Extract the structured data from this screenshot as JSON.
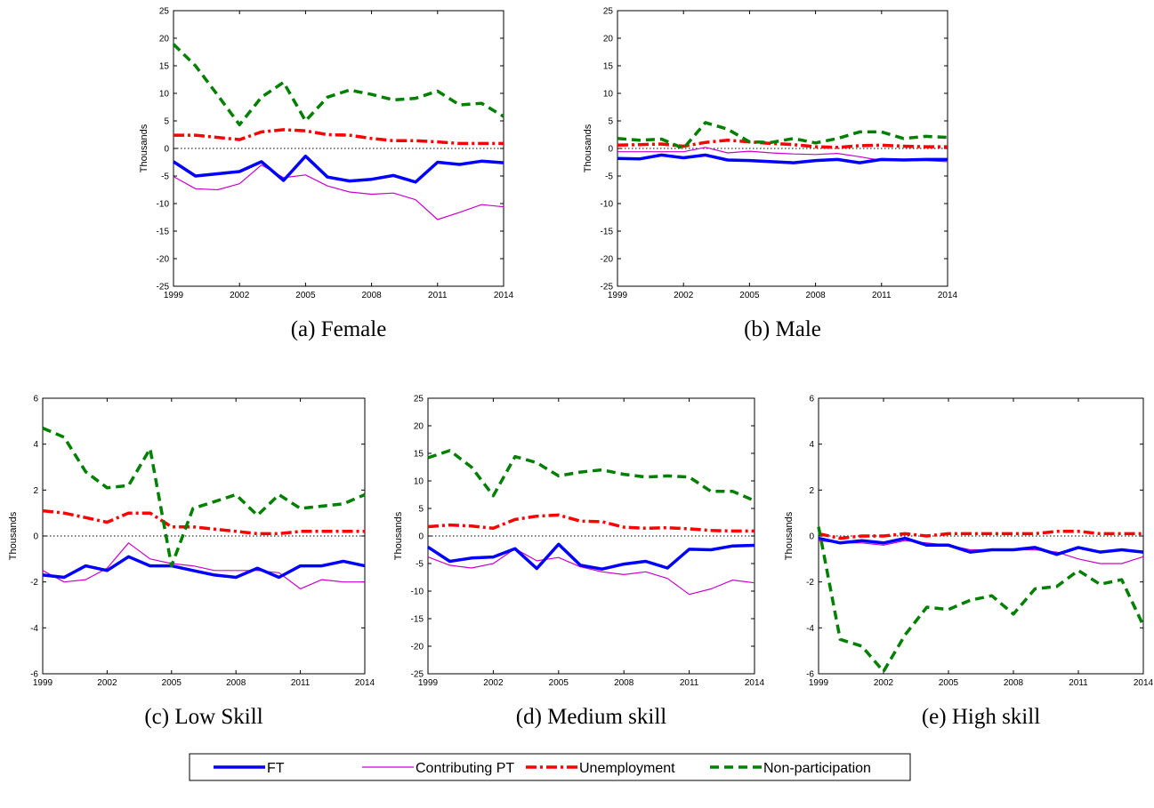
{
  "figure": {
    "legend": [
      {
        "name": "FT",
        "color": "#0000ff"
      },
      {
        "name": "Contributing PT",
        "color": "#cc00cc"
      },
      {
        "name": "Unemployment",
        "color": "#ff0000"
      },
      {
        "name": "Non-participation",
        "color": "#008000"
      }
    ]
  },
  "chart_data": [
    {
      "type": "line",
      "caption": "(a) Female",
      "ylabel": "Thousands",
      "ylim": [
        -25,
        25
      ],
      "yticks": [
        -25,
        -20,
        -15,
        -10,
        -5,
        0,
        5,
        10,
        15,
        20,
        25
      ],
      "xlim": [
        1999,
        2014
      ],
      "xticks": [
        1999,
        2002,
        2005,
        2008,
        2011,
        2014
      ],
      "x": [
        1999,
        2000,
        2001,
        2002,
        2003,
        2004,
        2005,
        2006,
        2007,
        2008,
        2009,
        2010,
        2011,
        2012,
        2013,
        2014
      ],
      "zero_line": true,
      "series": [
        {
          "name": "FT",
          "values": [
            -2.4,
            -5.0,
            -4.6,
            -4.2,
            -2.4,
            -5.8,
            -1.4,
            -5.2,
            -5.9,
            -5.6,
            -4.9,
            -6.1,
            -2.5,
            -2.9,
            -2.3,
            -2.6
          ]
        },
        {
          "name": "Contributing PT",
          "values": [
            -5.1,
            -7.3,
            -7.5,
            -6.4,
            -3.0,
            -5.3,
            -4.8,
            -6.8,
            -7.9,
            -8.3,
            -8.1,
            -9.3,
            -12.9,
            -11.6,
            -10.2,
            -10.6
          ]
        },
        {
          "name": "Unemployment",
          "values": [
            2.4,
            2.4,
            2.0,
            1.6,
            3.0,
            3.4,
            3.2,
            2.5,
            2.4,
            1.8,
            1.4,
            1.4,
            1.2,
            0.9,
            0.9,
            0.9
          ]
        },
        {
          "name": "Non-participation",
          "values": [
            18.9,
            15.0,
            9.7,
            4.3,
            9.3,
            12.0,
            5.0,
            9.3,
            10.6,
            9.8,
            8.8,
            9.1,
            10.4,
            7.9,
            8.2,
            5.8
          ]
        }
      ]
    },
    {
      "type": "line",
      "caption": "(b) Male",
      "ylabel": "Thousands",
      "ylim": [
        -25,
        25
      ],
      "yticks": [
        -25,
        -20,
        -15,
        -10,
        -5,
        0,
        5,
        10,
        15,
        20,
        25
      ],
      "xlim": [
        1999,
        2014
      ],
      "xticks": [
        1999,
        2002,
        2005,
        2008,
        2011,
        2014
      ],
      "x": [
        1999,
        2000,
        2001,
        2002,
        2003,
        2004,
        2005,
        2006,
        2007,
        2008,
        2009,
        2010,
        2011,
        2012,
        2013,
        2014
      ],
      "zero_line": true,
      "series": [
        {
          "name": "FT",
          "values": [
            -1.8,
            -1.9,
            -1.2,
            -1.7,
            -1.2,
            -2.1,
            -2.2,
            -2.4,
            -2.6,
            -2.2,
            -2.0,
            -2.6,
            -2.0,
            -2.1,
            -2.0,
            -2.0
          ]
        },
        {
          "name": "Contributing PT",
          "values": [
            -0.6,
            -0.6,
            -0.6,
            -0.6,
            0.2,
            -0.8,
            -0.5,
            -0.8,
            -1.0,
            -1.1,
            -0.9,
            -1.5,
            -2.2,
            -2.2,
            -2.2,
            -2.4
          ]
        },
        {
          "name": "Unemployment",
          "values": [
            0.6,
            0.7,
            0.8,
            0.4,
            1.1,
            1.5,
            1.2,
            0.9,
            0.7,
            0.3,
            0.2,
            0.5,
            0.6,
            0.4,
            0.3,
            0.3
          ]
        },
        {
          "name": "Non-participation",
          "values": [
            1.8,
            1.5,
            1.7,
            0.0,
            4.7,
            3.5,
            1.2,
            1.1,
            1.8,
            1.0,
            1.8,
            3.0,
            3.0,
            1.8,
            2.2,
            2.0
          ]
        }
      ]
    },
    {
      "type": "line",
      "caption": "(c) Low Skill",
      "ylabel": "Thousands",
      "ylim": [
        -6,
        6
      ],
      "yticks": [
        -6,
        -4,
        -2,
        0,
        2,
        4,
        6
      ],
      "xlim": [
        1999,
        2014
      ],
      "xticks": [
        1999,
        2002,
        2005,
        2008,
        2011,
        2014
      ],
      "x": [
        1999,
        2000,
        2001,
        2002,
        2003,
        2004,
        2005,
        2006,
        2007,
        2008,
        2009,
        2010,
        2011,
        2012,
        2013,
        2014
      ],
      "zero_line": true,
      "series": [
        {
          "name": "FT",
          "values": [
            -1.7,
            -1.8,
            -1.3,
            -1.5,
            -0.9,
            -1.3,
            -1.3,
            -1.5,
            -1.7,
            -1.8,
            -1.4,
            -1.8,
            -1.3,
            -1.3,
            -1.1,
            -1.3
          ]
        },
        {
          "name": "Contributing PT",
          "values": [
            -1.5,
            -2.0,
            -1.9,
            -1.4,
            -0.3,
            -1.0,
            -1.2,
            -1.3,
            -1.5,
            -1.5,
            -1.5,
            -1.6,
            -2.3,
            -1.9,
            -2.0,
            -2.0
          ]
        },
        {
          "name": "Unemployment",
          "values": [
            1.1,
            1.0,
            0.8,
            0.6,
            1.0,
            1.0,
            0.4,
            0.4,
            0.3,
            0.2,
            0.1,
            0.1,
            0.2,
            0.2,
            0.2,
            0.2
          ]
        },
        {
          "name": "Non-participation",
          "values": [
            4.7,
            4.3,
            2.8,
            2.1,
            2.2,
            3.8,
            -1.3,
            1.2,
            1.5,
            1.8,
            0.9,
            1.8,
            1.2,
            1.3,
            1.4,
            1.8
          ]
        }
      ]
    },
    {
      "type": "line",
      "caption": "(d) Medium skill",
      "ylabel": "Thousands",
      "ylim": [
        -25,
        25
      ],
      "yticks": [
        -25,
        -20,
        -15,
        -10,
        -5,
        0,
        5,
        10,
        15,
        20,
        25
      ],
      "xlim": [
        1999,
        2014
      ],
      "xticks": [
        1999,
        2002,
        2005,
        2008,
        2011,
        2014
      ],
      "x": [
        1999,
        2000,
        2001,
        2002,
        2003,
        2004,
        2005,
        2006,
        2007,
        2008,
        2009,
        2010,
        2011,
        2012,
        2013,
        2014
      ],
      "zero_line": true,
      "series": [
        {
          "name": "FT",
          "values": [
            -2.0,
            -4.6,
            -4.0,
            -3.8,
            -2.3,
            -5.9,
            -1.5,
            -5.3,
            -6.0,
            -5.1,
            -4.6,
            -5.8,
            -2.4,
            -2.5,
            -1.8,
            -1.7
          ]
        },
        {
          "name": "Contributing PT",
          "values": [
            -3.8,
            -5.3,
            -5.8,
            -5.0,
            -2.3,
            -4.5,
            -3.9,
            -5.6,
            -6.5,
            -7.0,
            -6.5,
            -7.7,
            -10.6,
            -9.6,
            -8.0,
            -8.5
          ]
        },
        {
          "name": "Unemployment",
          "values": [
            1.7,
            2.0,
            1.8,
            1.4,
            3.0,
            3.6,
            3.8,
            2.7,
            2.6,
            1.6,
            1.4,
            1.5,
            1.3,
            1.0,
            0.9,
            0.9
          ]
        },
        {
          "name": "Non-participation",
          "values": [
            14.2,
            15.5,
            12.5,
            7.3,
            14.4,
            13.3,
            10.9,
            11.6,
            12.0,
            11.2,
            10.7,
            10.9,
            10.7,
            8.1,
            8.1,
            6.4
          ]
        }
      ]
    },
    {
      "type": "line",
      "caption": "(e) High skill",
      "ylabel": "Thousands",
      "ylim": [
        -6,
        6
      ],
      "yticks": [
        -6,
        -4,
        -2,
        0,
        2,
        4,
        6
      ],
      "xlim": [
        1999,
        2014
      ],
      "xticks": [
        1999,
        2002,
        2005,
        2008,
        2011,
        2014
      ],
      "x": [
        1999,
        2000,
        2001,
        2002,
        2003,
        2004,
        2005,
        2006,
        2007,
        2008,
        2009,
        2010,
        2011,
        2012,
        2013,
        2014
      ],
      "zero_line": true,
      "series": [
        {
          "name": "FT",
          "values": [
            -0.1,
            -0.3,
            -0.2,
            -0.3,
            -0.1,
            -0.4,
            -0.4,
            -0.7,
            -0.6,
            -0.6,
            -0.5,
            -0.8,
            -0.5,
            -0.7,
            -0.6,
            -0.7
          ]
        },
        {
          "name": "Contributing PT",
          "values": [
            -0.2,
            -0.3,
            -0.3,
            -0.4,
            -0.2,
            -0.3,
            -0.4,
            -0.6,
            -0.6,
            -0.6,
            -0.6,
            -0.7,
            -1.0,
            -1.2,
            -1.2,
            -0.9
          ]
        },
        {
          "name": "Unemployment",
          "values": [
            0.1,
            -0.1,
            0.0,
            0.0,
            0.1,
            0.0,
            0.1,
            0.1,
            0.1,
            0.1,
            0.1,
            0.2,
            0.2,
            0.1,
            0.1,
            0.1
          ]
        },
        {
          "name": "Non-participation",
          "values": [
            0.4,
            -4.5,
            -4.8,
            -5.9,
            -4.3,
            -3.1,
            -3.2,
            -2.8,
            -2.6,
            -3.4,
            -2.3,
            -2.2,
            -1.5,
            -2.1,
            -1.9,
            -3.9
          ]
        }
      ]
    }
  ]
}
